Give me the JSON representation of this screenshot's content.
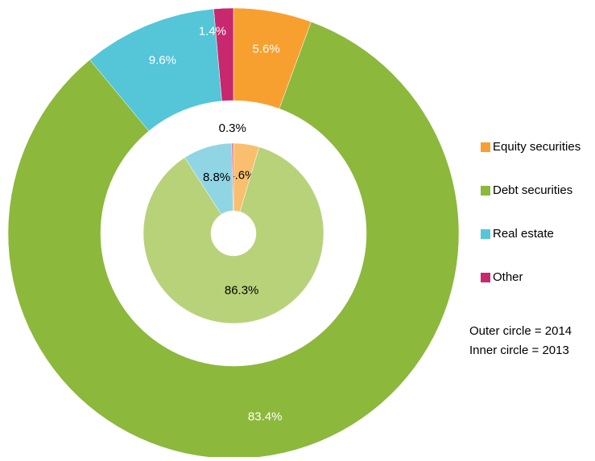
{
  "chart_data": {
    "type": "donut",
    "categories": [
      "Equity securities",
      "Debt securities",
      "Real estate",
      "Other"
    ],
    "series": [
      {
        "values": [
          5.6,
          83.4,
          9.6,
          1.4
        ],
        "value_labels": [
          "5.6%",
          "83.4%",
          "9.6%",
          "1.4%"
        ],
        "colors": [
          "#f7a030",
          "#8cb83c",
          "#55c5d8",
          "#c8286e"
        ]
      },
      {
        "values": [
          4.6,
          86.3,
          8.8,
          0.3
        ],
        "value_labels": [
          "4.6%",
          "86.3%",
          "8.8%",
          "0.3%"
        ],
        "colors": [
          "#f9bf6e",
          "#b8d27a",
          "#90d5e3",
          "#d86a98"
        ]
      }
    ],
    "legend": "right",
    "annotations": [
      "Outer circle = 2014",
      "Inner circle = 2013"
    ]
  }
}
